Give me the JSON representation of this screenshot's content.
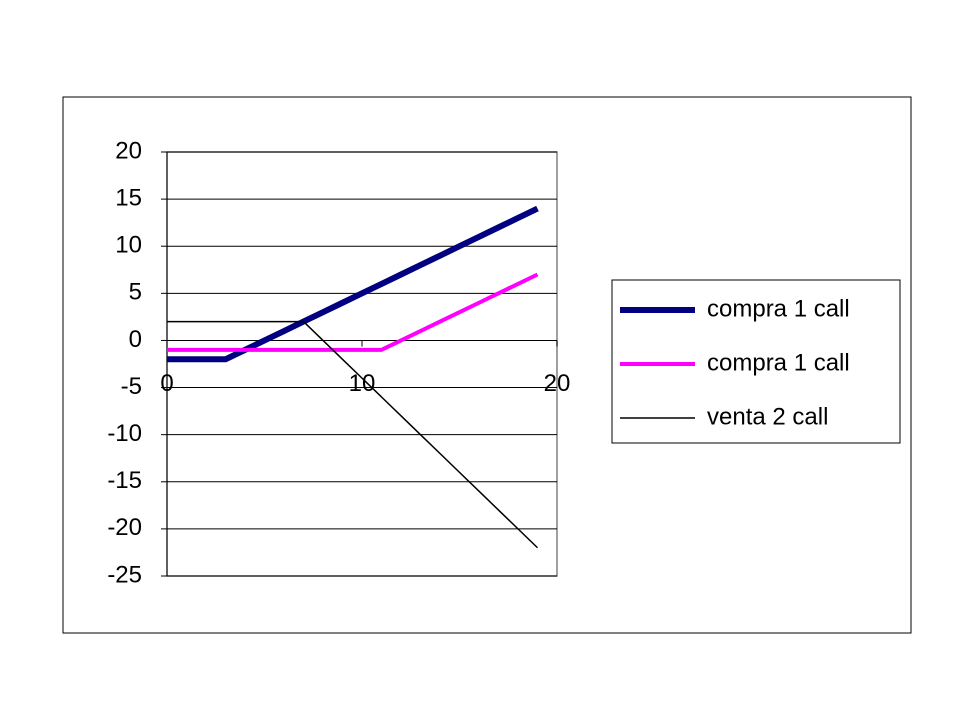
{
  "chart_data": {
    "type": "line",
    "x": [
      0,
      1,
      2,
      3,
      4,
      5,
      6,
      7,
      8,
      9,
      10,
      11,
      12,
      13,
      14,
      15,
      16,
      17,
      18,
      19
    ],
    "series": [
      {
        "name": "compra 1 call",
        "color": "#000080",
        "values": [
          -2,
          -2,
          -2,
          -2,
          -1,
          0,
          1,
          2,
          3,
          4,
          5,
          6,
          7,
          8,
          9,
          10,
          11,
          12,
          13,
          14
        ]
      },
      {
        "name": "compra 1 call",
        "color": "#ff00ff",
        "values": [
          -1,
          -1,
          -1,
          -1,
          -1,
          -1,
          -1,
          -1,
          -1,
          -1,
          -1,
          -1,
          0,
          1,
          2,
          3,
          4,
          5,
          6,
          7
        ]
      },
      {
        "name": "venta 2 call",
        "color": "#000000",
        "values": [
          2,
          2,
          2,
          2,
          2,
          2,
          2,
          2,
          0,
          -2,
          -4,
          -6,
          -8,
          -10,
          -12,
          -14,
          -16,
          -18,
          -20,
          -22
        ]
      }
    ],
    "xlim": [
      0,
      20
    ],
    "xticks": [
      0,
      10,
      20
    ],
    "ylim": [
      -25,
      20
    ],
    "yticks": [
      -25,
      -20,
      -15,
      -10,
      -5,
      0,
      5,
      10,
      15,
      20
    ],
    "grid": true,
    "legend": "right"
  }
}
